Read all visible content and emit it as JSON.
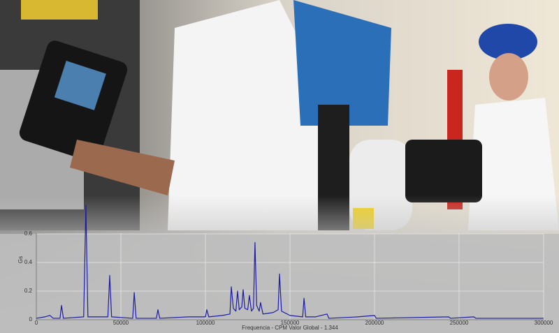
{
  "chart_data": {
    "type": "line",
    "x_label": "Frequencia - CPM  Valor Global - 1.344",
    "y_label": "Gs",
    "color": "#1c1ca8",
    "grid": true,
    "xlim": [
      0,
      300000
    ],
    "xticks": [
      0,
      50000,
      100000,
      150000,
      200000,
      250000,
      300000
    ],
    "ylim": [
      0,
      0.8
    ],
    "yticks": [
      0,
      0.2,
      0.4,
      0.6
    ],
    "x": [
      0,
      5000,
      8000,
      10000,
      14000,
      14900,
      16000,
      28000,
      29300,
      30500,
      42300,
      43400,
      44500,
      57000,
      57900,
      59000,
      71000,
      71900,
      73000,
      90000,
      100000,
      100800,
      102000,
      110000,
      114500,
      115300,
      116500,
      118000,
      119000,
      120000,
      121500,
      122300,
      123300,
      125000,
      126000,
      127200,
      128400,
      129300,
      130300,
      131800,
      132600,
      134000,
      140000,
      143000,
      143800,
      145000,
      150000,
      157500,
      158300,
      159300,
      165000,
      171900,
      173000,
      190000,
      200000,
      201000,
      243800,
      245000,
      258700,
      260000,
      300000
    ],
    "values": [
      0.01,
      0.02,
      0.03,
      0.01,
      0.01,
      0.1,
      0.01,
      0.02,
      0.8,
      0.02,
      0.02,
      0.31,
      0.02,
      0.01,
      0.19,
      0.01,
      0.01,
      0.07,
      0.01,
      0.02,
      0.02,
      0.07,
      0.02,
      0.03,
      0.04,
      0.23,
      0.08,
      0.06,
      0.2,
      0.07,
      0.09,
      0.21,
      0.08,
      0.07,
      0.17,
      0.06,
      0.08,
      0.54,
      0.1,
      0.06,
      0.12,
      0.04,
      0.05,
      0.07,
      0.32,
      0.06,
      0.03,
      0.02,
      0.15,
      0.02,
      0.02,
      0.04,
      0.01,
      0.02,
      0.03,
      0.01,
      0.02,
      0.01,
      0.02,
      0.01,
      0.01
    ]
  }
}
